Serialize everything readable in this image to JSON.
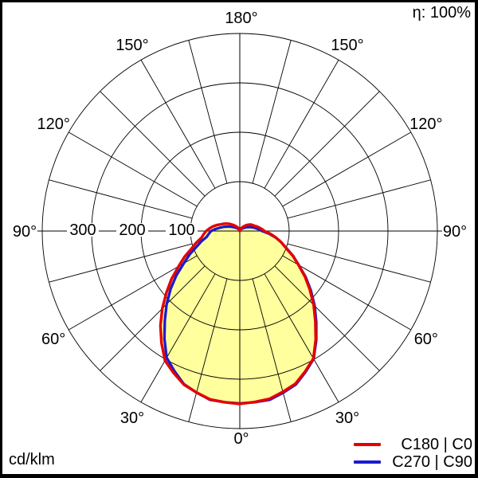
{
  "header": {
    "efficiency_label": "η: 100%"
  },
  "footer": {
    "unit_label": "cd/klm"
  },
  "legend": {
    "items": [
      {
        "label": "C180 | C0",
        "color": "#e60000"
      },
      {
        "label": "C270 | C90",
        "color": "#1b1bd0"
      }
    ]
  },
  "chart_data": {
    "type": "line",
    "subtype": "polar-luminous-intensity-distribution",
    "units": "cd/klm",
    "efficiency": "η: 100%",
    "grid": true,
    "angle_grid_step_deg": 15,
    "angle_tick_labels_deg": [
      0,
      30,
      60,
      90,
      120,
      150,
      180
    ],
    "radial_tick_labels": [
      "100",
      "200",
      "300"
    ],
    "radial_max": 400,
    "fill_color": "#ffff9d",
    "gamma_deg": [
      0,
      10,
      20,
      30,
      40,
      50,
      60,
      70,
      80,
      90,
      100,
      110,
      120,
      130,
      140,
      150,
      160,
      170,
      180
    ],
    "series": [
      {
        "name": "C180 | C0",
        "color": "#e60000",
        "left_plane": "C180",
        "right_plane": "C0",
        "left_values": [
          350,
          346,
          331,
          303,
          250,
          194,
          143,
          104,
          79,
          68,
          55,
          40,
          30,
          20,
          13,
          8,
          4,
          1,
          0
        ],
        "right_values": [
          350,
          345,
          329,
          298,
          238,
          185,
          137,
          99,
          74,
          50,
          40,
          31,
          26,
          19,
          12,
          7,
          3,
          1,
          0
        ]
      },
      {
        "name": "C270 | C90",
        "color": "#1b1bd0",
        "left_plane": "C270",
        "right_plane": "C90",
        "left_values": [
          349,
          347,
          330,
          296,
          236,
          183,
          131,
          93,
          68,
          58,
          40,
          26,
          16,
          10,
          7,
          4,
          2,
          1,
          0
        ],
        "right_values": [
          349,
          347,
          331,
          299,
          241,
          188,
          138,
          100,
          73,
          45,
          33,
          23,
          15,
          9,
          6,
          4,
          2,
          1,
          0
        ]
      }
    ]
  }
}
